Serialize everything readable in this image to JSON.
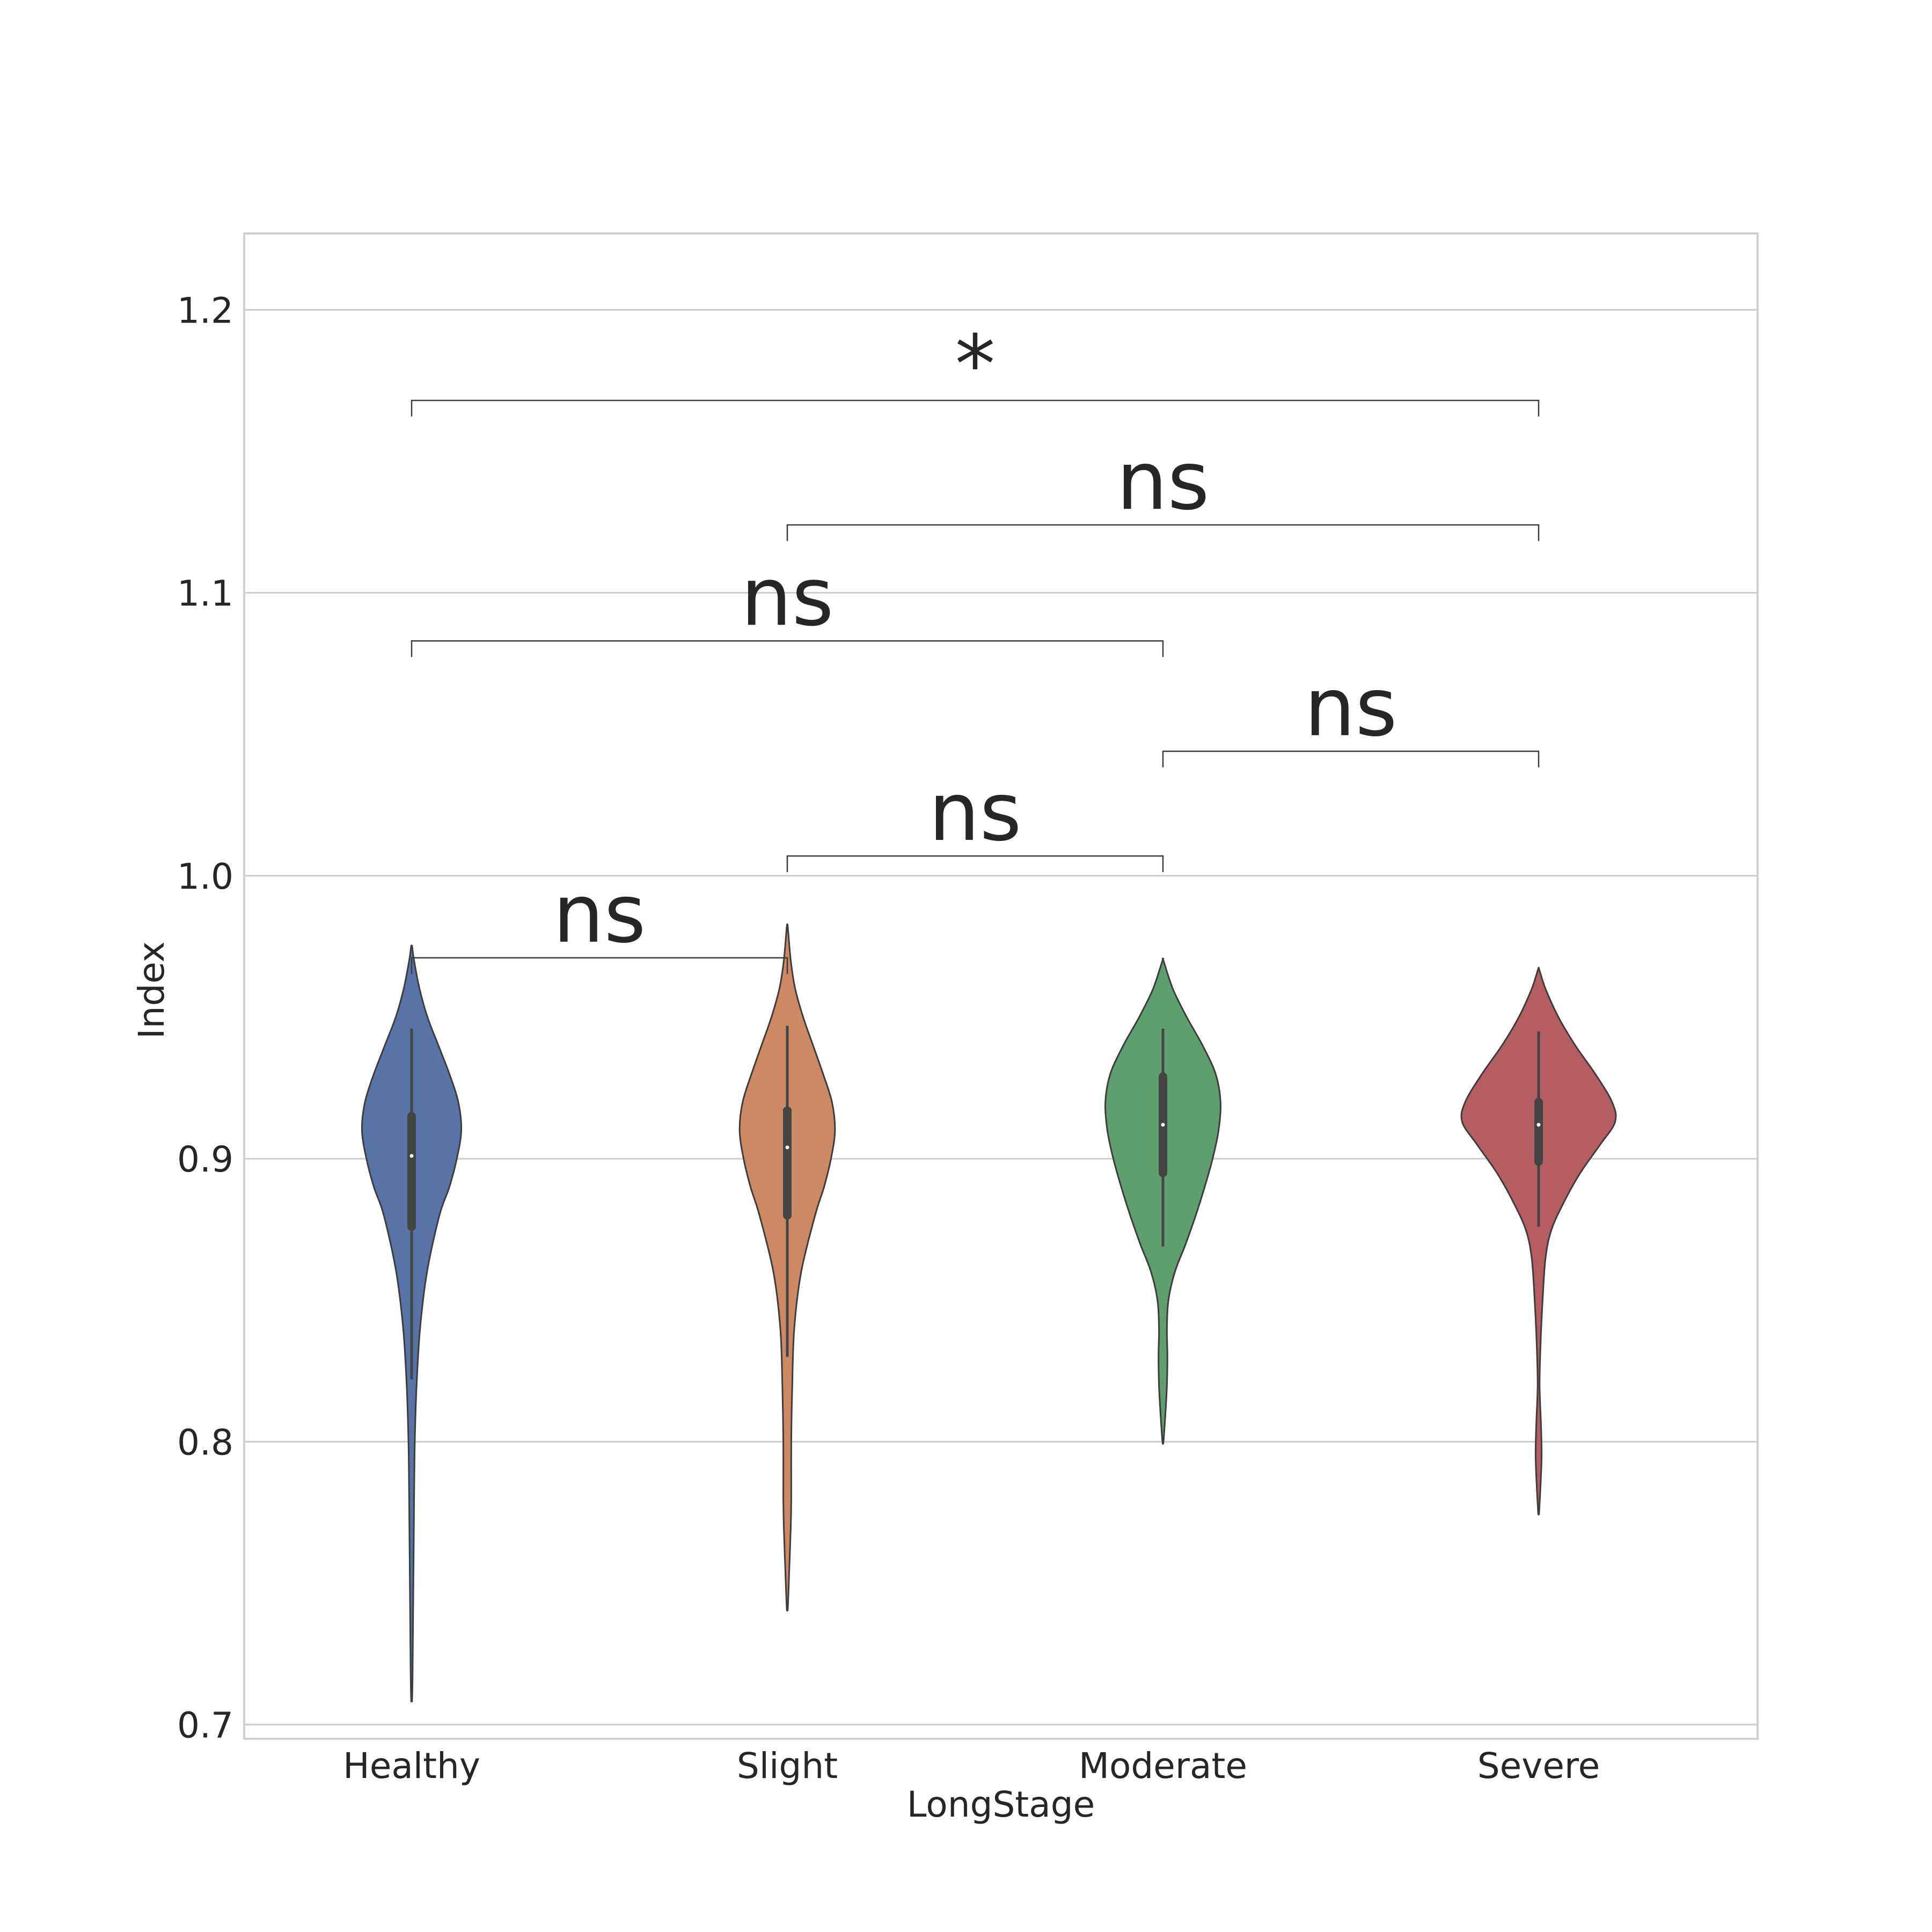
{
  "chart_data": {
    "type": "violin",
    "xlabel": "LongStage",
    "ylabel": "Index",
    "ylim": [
      0.695,
      1.227
    ],
    "yticks": [
      "0.7",
      "0.8",
      "0.9",
      "1.0",
      "1.1",
      "1.2"
    ],
    "grid": true,
    "categories": [
      "Healthy",
      "Slight",
      "Moderate",
      "Severe"
    ],
    "series": [
      {
        "color": "#5874a6",
        "min": 0.709,
        "max": 0.975,
        "whisker_low": 0.822,
        "whisker_high": 0.946,
        "q1": 0.876,
        "median": 0.901,
        "q3": 0.915,
        "profile": [
          [
            0.709,
            0.005
          ],
          [
            0.72,
            0.01
          ],
          [
            0.76,
            0.02
          ],
          [
            0.78,
            0.025
          ],
          [
            0.8,
            0.032
          ],
          [
            0.82,
            0.05
          ],
          [
            0.84,
            0.085
          ],
          [
            0.86,
            0.155
          ],
          [
            0.88,
            0.28
          ],
          [
            0.89,
            0.38
          ],
          [
            0.9,
            0.455
          ],
          [
            0.91,
            0.5
          ],
          [
            0.92,
            0.47
          ],
          [
            0.93,
            0.38
          ],
          [
            0.94,
            0.27
          ],
          [
            0.95,
            0.16
          ],
          [
            0.96,
            0.08
          ],
          [
            0.97,
            0.025
          ],
          [
            0.975,
            0.005
          ]
        ]
      },
      {
        "color": "#cc8963",
        "min": 0.741,
        "max": 0.982,
        "whisker_low": 0.83,
        "whisker_high": 0.947,
        "q1": 0.88,
        "median": 0.904,
        "q3": 0.917,
        "profile": [
          [
            0.741,
            0.005
          ],
          [
            0.75,
            0.015
          ],
          [
            0.77,
            0.035
          ],
          [
            0.78,
            0.04
          ],
          [
            0.8,
            0.04
          ],
          [
            0.82,
            0.05
          ],
          [
            0.84,
            0.07
          ],
          [
            0.86,
            0.14
          ],
          [
            0.88,
            0.28
          ],
          [
            0.89,
            0.37
          ],
          [
            0.9,
            0.44
          ],
          [
            0.91,
            0.48
          ],
          [
            0.92,
            0.45
          ],
          [
            0.93,
            0.36
          ],
          [
            0.94,
            0.26
          ],
          [
            0.95,
            0.16
          ],
          [
            0.96,
            0.08
          ],
          [
            0.97,
            0.035
          ],
          [
            0.982,
            0.005
          ]
        ]
      },
      {
        "color": "#5f9e6e",
        "min": 0.8,
        "max": 0.97,
        "whisker_low": 0.869,
        "whisker_high": 0.946,
        "q1": 0.895,
        "median": 0.912,
        "q3": 0.929,
        "profile": [
          [
            0.8,
            0.005
          ],
          [
            0.81,
            0.025
          ],
          [
            0.82,
            0.04
          ],
          [
            0.83,
            0.045
          ],
          [
            0.84,
            0.04
          ],
          [
            0.85,
            0.055
          ],
          [
            0.86,
            0.12
          ],
          [
            0.87,
            0.23
          ],
          [
            0.88,
            0.33
          ],
          [
            0.89,
            0.42
          ],
          [
            0.9,
            0.5
          ],
          [
            0.91,
            0.56
          ],
          [
            0.92,
            0.58
          ],
          [
            0.93,
            0.53
          ],
          [
            0.94,
            0.4
          ],
          [
            0.95,
            0.24
          ],
          [
            0.96,
            0.1
          ],
          [
            0.97,
            0.005
          ]
        ]
      },
      {
        "color": "#b55d60",
        "min": 0.775,
        "max": 0.967,
        "whisker_low": 0.876,
        "whisker_high": 0.945,
        "q1": 0.899,
        "median": 0.912,
        "q3": 0.92,
        "profile": [
          [
            0.775,
            0.005
          ],
          [
            0.785,
            0.02
          ],
          [
            0.795,
            0.03
          ],
          [
            0.805,
            0.025
          ],
          [
            0.82,
            0.01
          ],
          [
            0.835,
            0.02
          ],
          [
            0.85,
            0.04
          ],
          [
            0.865,
            0.07
          ],
          [
            0.875,
            0.13
          ],
          [
            0.885,
            0.26
          ],
          [
            0.895,
            0.42
          ],
          [
            0.905,
            0.62
          ],
          [
            0.913,
            0.77
          ],
          [
            0.92,
            0.74
          ],
          [
            0.93,
            0.57
          ],
          [
            0.94,
            0.37
          ],
          [
            0.95,
            0.2
          ],
          [
            0.96,
            0.07
          ],
          [
            0.967,
            0.005
          ]
        ]
      }
    ],
    "annotations": [
      {
        "from": 0,
        "to": 1,
        "y": 0.971,
        "text": "ns"
      },
      {
        "from": 1,
        "to": 2,
        "y": 1.007,
        "text": "ns"
      },
      {
        "from": 2,
        "to": 3,
        "y": 1.044,
        "text": "ns"
      },
      {
        "from": 0,
        "to": 2,
        "y": 1.083,
        "text": "ns"
      },
      {
        "from": 1,
        "to": 3,
        "y": 1.124,
        "text": "ns"
      },
      {
        "from": 0,
        "to": 3,
        "y": 1.168,
        "text": "*"
      }
    ]
  }
}
